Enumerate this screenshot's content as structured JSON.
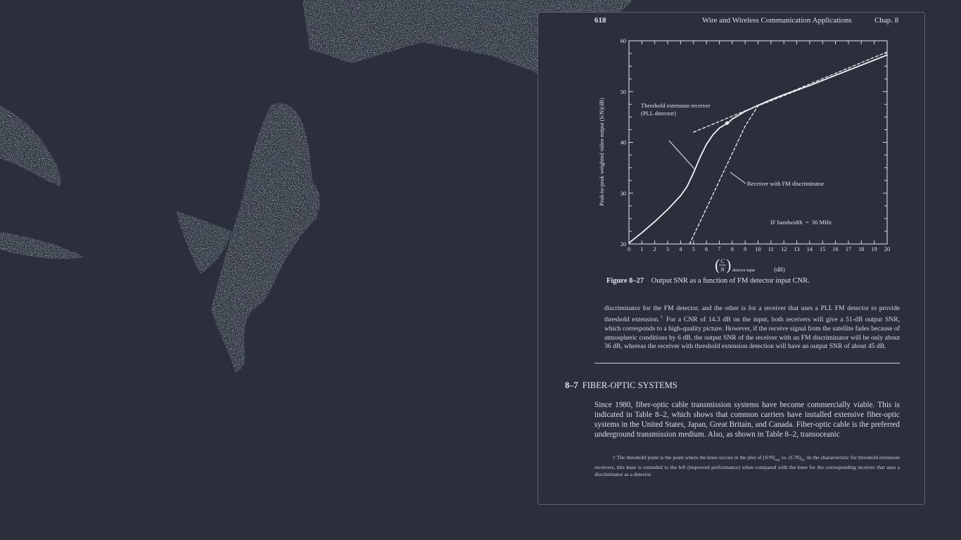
{
  "page": {
    "number": "618",
    "running_head": "Wire and Wireless Communication Applications",
    "chapter": "Chap. 8"
  },
  "figure": {
    "label": "Figure 8–27",
    "caption": "Output SNR as a function of FM detector input CNR.",
    "annotations": {
      "pll": [
        "Threshold extension receiver",
        "(PLL detector)"
      ],
      "fm": "Receiver with FM discriminator",
      "bandwidth": "IF bandwidth  =  30 MHz"
    },
    "xlabel_main": "(dB)",
    "xlabel_sub": "detector input",
    "xlabel_frac_top": "C",
    "xlabel_frac_bottom": "N",
    "ylabel": "Peak-to-peak weighted video output (S/N)(dB)"
  },
  "chart_data": {
    "type": "line",
    "xlim": [
      0,
      20
    ],
    "ylim": [
      20,
      60
    ],
    "x_ticks": [
      "0",
      "1",
      "2",
      "3",
      "4",
      "5",
      "6",
      "7",
      "8",
      "9",
      "10",
      "11",
      "12",
      "13",
      "14",
      "15",
      "16",
      "17",
      "18",
      "19",
      "20"
    ],
    "y_ticks": [
      "20",
      "30",
      "40",
      "50",
      "60"
    ],
    "series": [
      {
        "name": "Threshold extension receiver (PLL detector)",
        "style": "solid",
        "x": [
          0,
          1,
          2,
          3,
          4,
          4.5,
          5,
          5.5,
          6,
          6.5,
          7,
          7.5,
          7.7,
          8,
          9,
          10,
          11,
          12,
          13,
          14,
          15,
          16,
          17,
          18,
          19,
          20
        ],
        "y": [
          20.2,
          22.2,
          24.4,
          26.8,
          29.5,
          31.3,
          34.0,
          37.0,
          39.6,
          41.5,
          42.8,
          43.6,
          43.9,
          44.6,
          46.1,
          47.3,
          48.4,
          49.4,
          50.3,
          51.2,
          52.2,
          53.2,
          54.2,
          55.2,
          56.2,
          57.2
        ]
      },
      {
        "name": "Receiver with FM discriminator",
        "style": "dashed",
        "x": [
          4.7,
          6,
          7,
          8,
          9,
          10,
          11,
          12,
          13,
          14,
          15,
          16,
          17,
          18,
          19,
          20
        ],
        "y": [
          20.0,
          27.0,
          32.4,
          37.8,
          43.2,
          47.2,
          48.2,
          49.2,
          50.2,
          51.2,
          52.2,
          53.2,
          54.2,
          55.2,
          56.2,
          57.2
        ]
      },
      {
        "name": "Asymptote",
        "style": "dashed",
        "x": [
          5,
          20
        ],
        "y": [
          42.0,
          57.8
        ]
      }
    ],
    "marker": {
      "x": 7.6,
      "y": 43.8
    }
  },
  "body": {
    "para1_a": "discriminator for the FM detector, and the other is for a receiver that uses a PLL FM detector to provide threshold extension.",
    "para1_dagger": "†",
    "para1_b": " For a CNR of 14.3 dB on the input, both receivers will give a 51-dB output SNR, which corresponds to a high-quality picture. However, if the receive signal from the satellite fades because of atmospheric conditions by 6 dB, the output SNR of the receiver with an FM discriminator will be only about 36 dB, whereas the receiver with threshold extension detection will have an output SNR of about 45 dB.",
    "section_number": "8–7",
    "section_title": "FIBER-OPTIC SYSTEMS",
    "para2": "Since 1980, fiber-optic cable transmission systems have become commercially viable. This is indicated in Table 8–2, which shows that common carriers have installed extensive fiber-optic systems in the United States, Japan, Great Britain, and Canada. Fiber-optic cable is the preferred underground transmission medium. Also, as shown in Table 8–2, transoceanic",
    "footnote_a": "† The threshold point is the point where the knee occurs in the plot of (S/N)",
    "footnote_sub1": "out",
    "footnote_b": " vs. (C/N)",
    "footnote_sub2": "in",
    "footnote_c": ". In the characteristic for threshold extension receivers, this knee is extended to the left (improved performance) when compared with the knee for the corresponding receiver that uses a discriminator as a detector."
  },
  "colors": {
    "background": "#2b2f3c",
    "text": "#dcdfe6",
    "wallpaper_texture": "#a9c4c0"
  }
}
